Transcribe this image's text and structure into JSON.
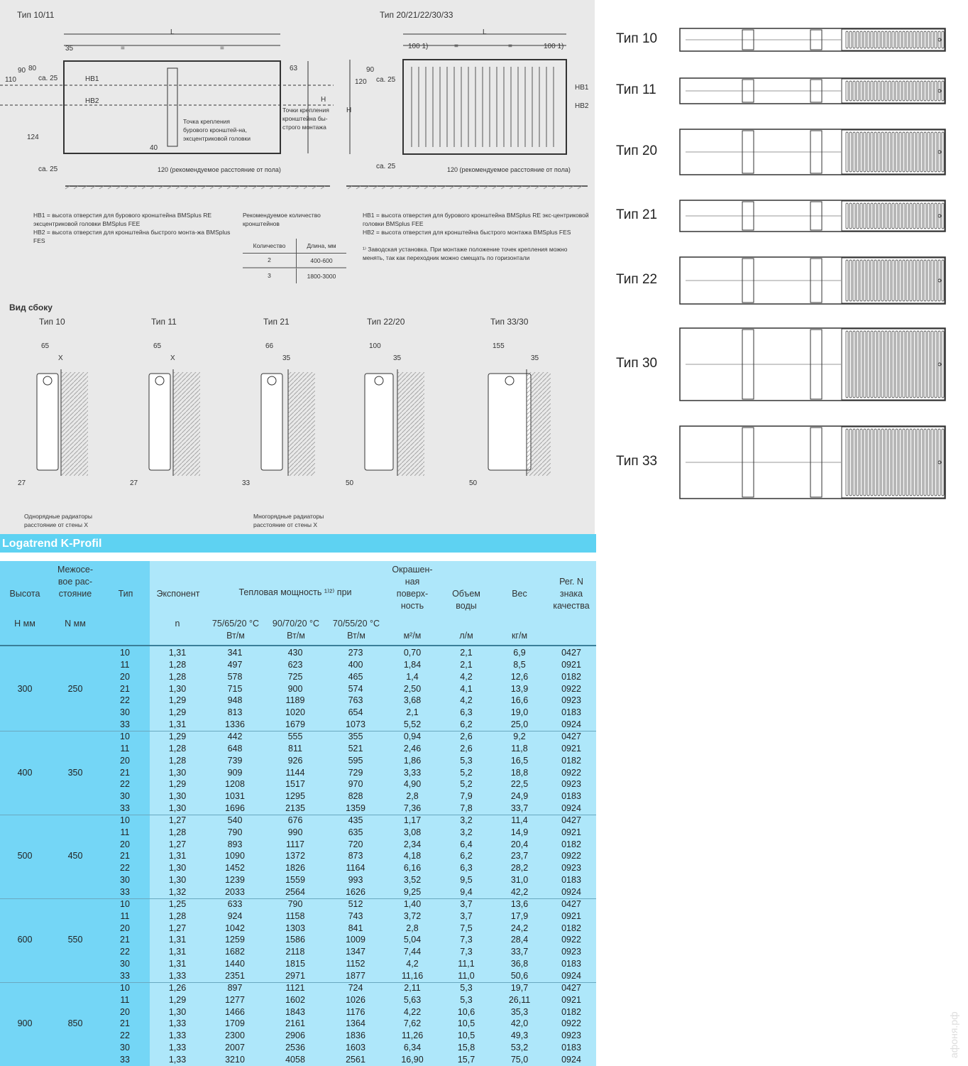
{
  "front": {
    "title_left": "Тип 10/11",
    "title_right": "Тип 20/21/22/30/33",
    "dims_left": [
      "L",
      "35",
      "=",
      "=",
      "63",
      "90",
      "80",
      "110",
      "ca. 25",
      "HB1",
      "HB2",
      "H",
      "124",
      "40",
      "ca. 25"
    ],
    "dims_right": [
      "L",
      "100 1)",
      "=",
      "=",
      "100 1)",
      "90",
      "120",
      "ca. 25",
      "HB1",
      "HB2",
      "H",
      "ca. 25"
    ],
    "note_drill": "Точка крепления бурового кронштей-на, эксцентриковой головки",
    "note_fast": "Точки крепления кронштейна бы-строго монтажа",
    "floor_left": "120 (рекомендуемое расстояние от пола)",
    "floor_right": "120 (рекомендуемое расстояние от пола)"
  },
  "legend_left": {
    "hb1": "HB1 = высота отверстия для бурового кронштейна BMSplus RE эксцентриковой головки BMSplus FEE",
    "hb2": "HB2 = высота отверстия для кронштейна быстрого монта-жа BMSplus FES"
  },
  "brackets": {
    "title": "Рекомендуемое количество кронштейнов",
    "headers": [
      "Количество",
      "Длина, мм"
    ],
    "rows": [
      [
        "2",
        "400-600"
      ],
      [
        "3",
        "1800-3000"
      ]
    ]
  },
  "legend_right": {
    "hb1": "HB1 = высота отверстия для бурового кронштейна BMSplus RE экс-центриковой головки BMSplus FEE",
    "hb2": "HB2 = высота отверстия для кронштейна быстрого монтажа BMSplus FES",
    "note": "¹⁾ Заводская установка. При монтаже положение точек крепления можно менять, так как переходник можно смещать по горизонтали"
  },
  "side": {
    "title": "Вид сбоку",
    "views": [
      {
        "label": "Тип 10",
        "top": "65",
        "x": "X",
        "bottom": "27"
      },
      {
        "label": "Тип 11",
        "top": "65",
        "x": "X",
        "bottom": "27"
      },
      {
        "label": "Тип 21",
        "top": "66",
        "x": "35",
        "bottom": "33"
      },
      {
        "label": "Тип 22/20",
        "top": "100",
        "x": "35",
        "bottom": "50"
      },
      {
        "label": "Тип 33/30",
        "top": "155",
        "x": "35",
        "bottom": "50"
      }
    ],
    "note_single": "Однорядные радиаторы расстояние от стены X",
    "note_multi": "Многорядные радиаторы расстояние от стены X"
  },
  "types": [
    "Тип 10",
    "Тип 11",
    "Тип 20",
    "Тип 21",
    "Тип 22",
    "Тип 30",
    "Тип 33"
  ],
  "section_title": "Logatrend K-Profil",
  "table": {
    "headers": {
      "height": "Высота",
      "axis": "Межосе-вое рас-стояние",
      "type": "Тип",
      "exponent": "Экспонент",
      "power": "Тепловая мощность ¹⁾²⁾ при",
      "surface": "Окрашен-ная поверх-ность",
      "water": "Объем воды",
      "weight": "Вес",
      "reg": "Рег. N знака качества"
    },
    "units": {
      "h": "H мм",
      "n": "N мм",
      "n_exp": "n",
      "t1": "75/65/20 °C Вт/м",
      "t2": "90/70/20 °C Вт/м",
      "t3": "70/55/20 °C Вт/м",
      "surface": "м²/м",
      "water": "л/м",
      "weight": "кг/м"
    },
    "groups": [
      {
        "h": "300",
        "n": "250",
        "rows": [
          [
            "10",
            "1,31",
            "341",
            "430",
            "273",
            "0,70",
            "2,1",
            "6,9",
            "0427"
          ],
          [
            "11",
            "1,28",
            "497",
            "623",
            "400",
            "1,84",
            "2,1",
            "8,5",
            "0921"
          ],
          [
            "20",
            "1,28",
            "578",
            "725",
            "465",
            "1,4",
            "4,2",
            "12,6",
            "0182"
          ],
          [
            "21",
            "1,30",
            "715",
            "900",
            "574",
            "2,50",
            "4,1",
            "13,9",
            "0922"
          ],
          [
            "22",
            "1,29",
            "948",
            "1189",
            "763",
            "3,68",
            "4,2",
            "16,6",
            "0923"
          ],
          [
            "30",
            "1,29",
            "813",
            "1020",
            "654",
            "2,1",
            "6,3",
            "19,0",
            "0183"
          ],
          [
            "33",
            "1,31",
            "1336",
            "1679",
            "1073",
            "5,52",
            "6,2",
            "25,0",
            "0924"
          ]
        ]
      },
      {
        "h": "400",
        "n": "350",
        "rows": [
          [
            "10",
            "1,29",
            "442",
            "555",
            "355",
            "0,94",
            "2,6",
            "9,2",
            "0427"
          ],
          [
            "11",
            "1,28",
            "648",
            "811",
            "521",
            "2,46",
            "2,6",
            "11,8",
            "0921"
          ],
          [
            "20",
            "1,28",
            "739",
            "926",
            "595",
            "1,86",
            "5,3",
            "16,5",
            "0182"
          ],
          [
            "21",
            "1,30",
            "909",
            "1144",
            "729",
            "3,33",
            "5,2",
            "18,8",
            "0922"
          ],
          [
            "22",
            "1,29",
            "1208",
            "1517",
            "970",
            "4,90",
            "5,2",
            "22,5",
            "0923"
          ],
          [
            "30",
            "1,30",
            "1031",
            "1295",
            "828",
            "2,8",
            "7,9",
            "24,9",
            "0183"
          ],
          [
            "33",
            "1,30",
            "1696",
            "2135",
            "1359",
            "7,36",
            "7,8",
            "33,7",
            "0924"
          ]
        ]
      },
      {
        "h": "500",
        "n": "450",
        "rows": [
          [
            "10",
            "1,27",
            "540",
            "676",
            "435",
            "1,17",
            "3,2",
            "11,4",
            "0427"
          ],
          [
            "11",
            "1,28",
            "790",
            "990",
            "635",
            "3,08",
            "3,2",
            "14,9",
            "0921"
          ],
          [
            "20",
            "1,27",
            "893",
            "1117",
            "720",
            "2,34",
            "6,4",
            "20,4",
            "0182"
          ],
          [
            "21",
            "1,31",
            "1090",
            "1372",
            "873",
            "4,18",
            "6,2",
            "23,7",
            "0922"
          ],
          [
            "22",
            "1,30",
            "1452",
            "1826",
            "1164",
            "6,16",
            "6,3",
            "28,2",
            "0923"
          ],
          [
            "30",
            "1,30",
            "1239",
            "1559",
            "993",
            "3,52",
            "9,5",
            "31,0",
            "0183"
          ],
          [
            "33",
            "1,32",
            "2033",
            "2564",
            "1626",
            "9,25",
            "9,4",
            "42,2",
            "0924"
          ]
        ]
      },
      {
        "h": "600",
        "n": "550",
        "rows": [
          [
            "10",
            "1,25",
            "633",
            "790",
            "512",
            "1,40",
            "3,7",
            "13,6",
            "0427"
          ],
          [
            "11",
            "1,28",
            "924",
            "1158",
            "743",
            "3,72",
            "3,7",
            "17,9",
            "0921"
          ],
          [
            "20",
            "1,27",
            "1042",
            "1303",
            "841",
            "2,8",
            "7,5",
            "24,2",
            "0182"
          ],
          [
            "21",
            "1,31",
            "1259",
            "1586",
            "1009",
            "5,04",
            "7,3",
            "28,4",
            "0922"
          ],
          [
            "22",
            "1,31",
            "1682",
            "2118",
            "1347",
            "7,44",
            "7,3",
            "33,7",
            "0923"
          ],
          [
            "30",
            "1,31",
            "1440",
            "1815",
            "1152",
            "4,2",
            "11,1",
            "36,8",
            "0183"
          ],
          [
            "33",
            "1,33",
            "2351",
            "2971",
            "1877",
            "11,16",
            "11,0",
            "50,6",
            "0924"
          ]
        ]
      },
      {
        "h": "900",
        "n": "850",
        "rows": [
          [
            "10",
            "1,26",
            "897",
            "1121",
            "724",
            "2,11",
            "5,3",
            "19,7",
            "0427"
          ],
          [
            "11",
            "1,29",
            "1277",
            "1602",
            "1026",
            "5,63",
            "5,3",
            "26,11",
            "0921"
          ],
          [
            "20",
            "1,30",
            "1466",
            "1843",
            "1176",
            "4,22",
            "10,6",
            "35,3",
            "0182"
          ],
          [
            "21",
            "1,33",
            "1709",
            "2161",
            "1364",
            "7,62",
            "10,5",
            "42,0",
            "0922"
          ],
          [
            "22",
            "1,33",
            "2300",
            "2906",
            "1836",
            "11,26",
            "10,5",
            "49,3",
            "0923"
          ],
          [
            "30",
            "1,33",
            "2007",
            "2536",
            "1603",
            "6,34",
            "15,8",
            "53,2",
            "0183"
          ],
          [
            "33",
            "1,33",
            "3210",
            "4058",
            "2561",
            "16,90",
            "15,7",
            "75,0",
            "0924"
          ]
        ]
      }
    ]
  },
  "watermark": "афоня.рф",
  "colors": {
    "section_bar": "#5ed2f2",
    "table_left": "#74d6f6",
    "table_bg": "#aee7fa",
    "top_bg": "#e9e9e9"
  }
}
